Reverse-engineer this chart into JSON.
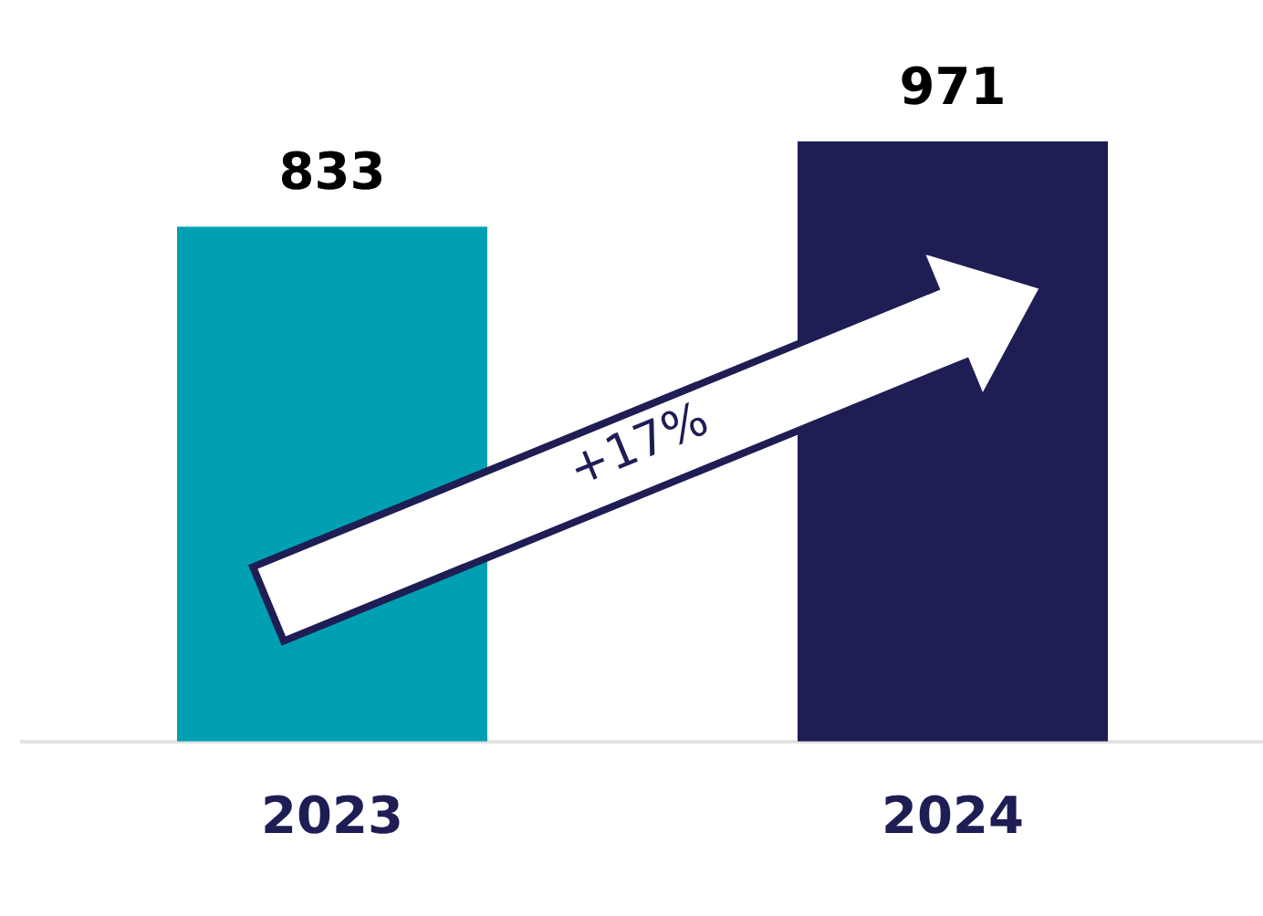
{
  "chart_data": {
    "type": "bar",
    "categories": [
      "2023",
      "2024"
    ],
    "values": [
      833,
      971
    ],
    "colors": [
      "#00a0b2",
      "#1e1e54"
    ],
    "data_labels": true,
    "grid": false,
    "legend": false,
    "annotations": [
      "+17%"
    ]
  }
}
